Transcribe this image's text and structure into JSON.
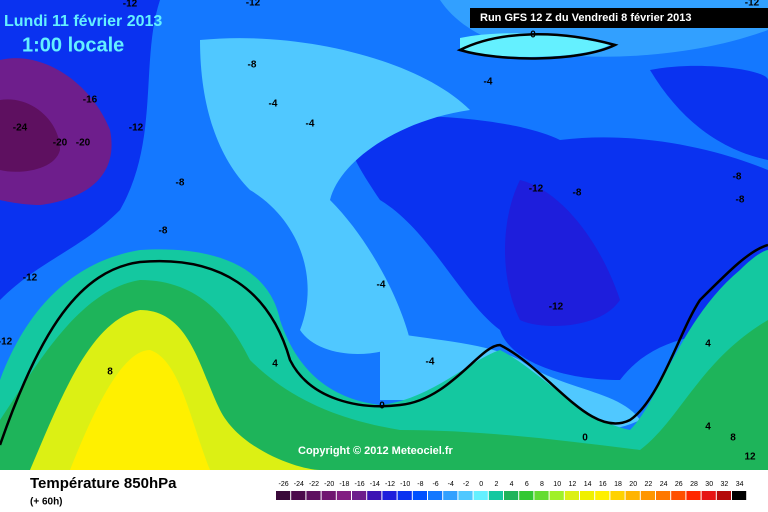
{
  "header": {
    "valid_date": "Lundi 11 février 2013",
    "local_time": "1:00 locale",
    "run": "Run GFS 12 Z du Vendredi 8 février 2013"
  },
  "copyright": "Copyright © 2012 Meteociel.fr",
  "footer": {
    "title": "Température 850hPa",
    "lead": "(+ 60h)"
  },
  "contour_labels": [
    -12,
    -12,
    -12,
    0,
    -8,
    -4,
    -16,
    -24,
    -12,
    -4,
    -4,
    -20,
    -20,
    -8,
    -12,
    -8,
    -8,
    -8,
    -8,
    -12,
    -4,
    -12,
    -12,
    8,
    4,
    -4,
    4,
    0,
    0,
    4,
    8,
    12
  ],
  "legend": {
    "values": [
      -26,
      -24,
      -22,
      -20,
      -18,
      -16,
      -14,
      -12,
      -10,
      -8,
      -6,
      -4,
      -2,
      0,
      2,
      4,
      6,
      8,
      10,
      12,
      14,
      16,
      18,
      20,
      22,
      24,
      26,
      28,
      30,
      32,
      34
    ],
    "colors": [
      "#3a0a3a",
      "#4c0a4c",
      "#5e1060",
      "#701670",
      "#821e82",
      "#6e1e8c",
      "#3c14b4",
      "#1e1edc",
      "#0a32f0",
      "#0050ff",
      "#1478ff",
      "#32a0ff",
      "#50c8ff",
      "#64f0ff",
      "#14c8a0",
      "#1eb45a",
      "#32c832",
      "#64dc32",
      "#a0f028",
      "#dcf014",
      "#f0f000",
      "#fff000",
      "#ffd200",
      "#ffb400",
      "#ff9600",
      "#ff7800",
      "#ff5000",
      "#ff2800",
      "#e61414",
      "#b40a0a",
      "#000000"
    ]
  }
}
